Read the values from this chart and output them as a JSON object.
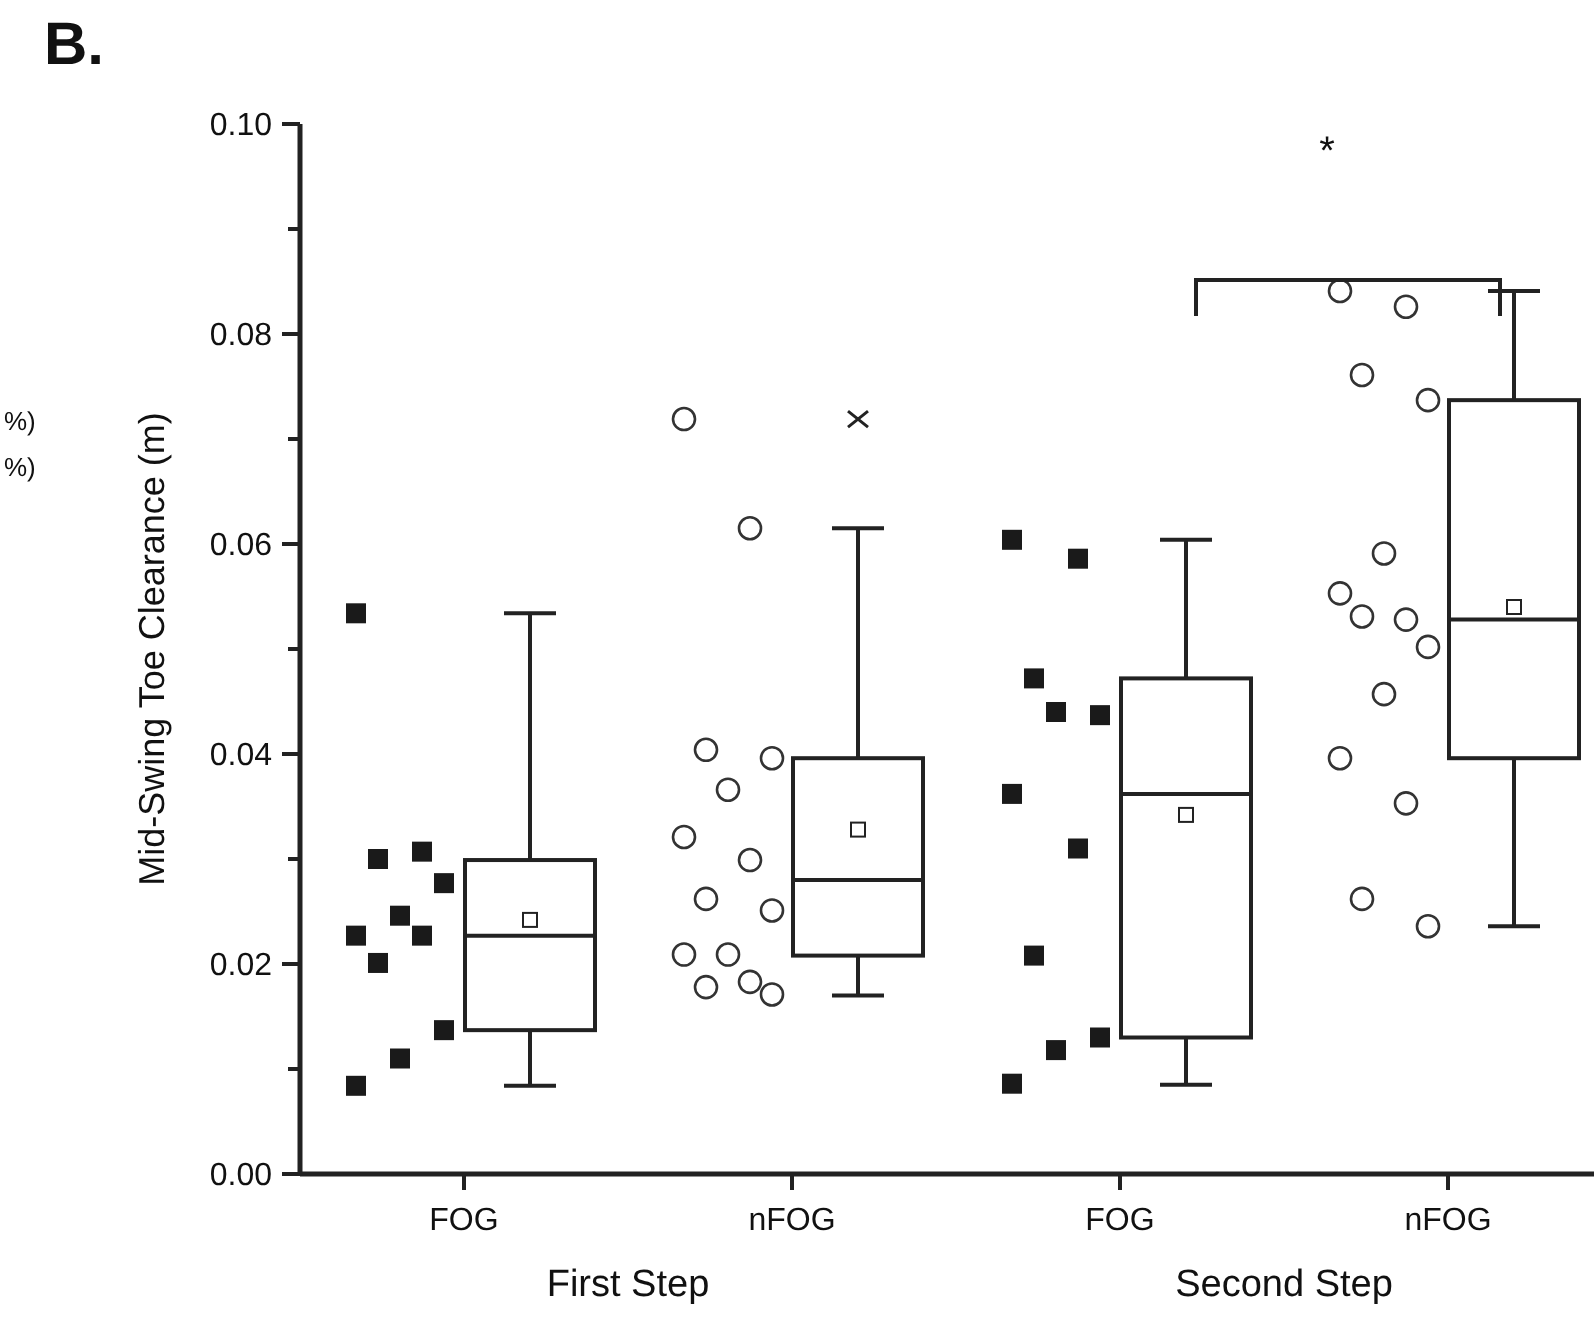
{
  "chart_data": [
    {
      "type": "box",
      "title": "B.",
      "ylabel": "Mid-Swing Toe Clearance (m)",
      "xlabel": "First Step",
      "categories": [
        "FOG",
        "nFOG"
      ],
      "ylim": [
        0,
        0.1
      ],
      "yticks": [
        {
          "value": 0,
          "label": "0.00"
        },
        {
          "value": 0.01,
          "label": null
        },
        {
          "value": 0.02,
          "label": "0.02"
        },
        {
          "value": 0.03,
          "label": null
        },
        {
          "value": 0.04,
          "label": "0.04"
        },
        {
          "value": 0.05,
          "label": null
        },
        {
          "value": 0.06,
          "label": "0.06"
        },
        {
          "value": 0.07,
          "label": null
        },
        {
          "value": 0.08,
          "label": "0.08"
        },
        {
          "value": 0.09,
          "label": null
        },
        {
          "value": 0.1,
          "label": "0.10"
        }
      ],
      "boxes": [
        {
          "low": 0.0084,
          "q1": 0.0137,
          "median": 0.0227,
          "q3": 0.0299,
          "high": 0.0534,
          "mean": 0.0242
        },
        {
          "low": 0.017,
          "q1": 0.0208,
          "median": 0.028,
          "q3": 0.0396,
          "high": 0.0615,
          "mean": 0.0328,
          "outliers": [
            0.0719
          ]
        }
      ],
      "series": [
        {
          "type": "scatter",
          "marker": "square",
          "color": "#1a1a1a",
          "x": [
            "FOG",
            "FOG",
            "FOG",
            "FOG",
            "FOG",
            "FOG",
            "FOG",
            "FOG",
            "FOG",
            "FOG",
            "FOG"
          ],
          "values": [
            0.0534,
            0.0307,
            0.03,
            0.0277,
            0.0246,
            0.0227,
            0.0227,
            0.0201,
            0.0137,
            0.011,
            0.0084
          ]
        },
        {
          "type": "scatter",
          "marker": "circle",
          "color": "#333333",
          "x": [
            "nFOG",
            "nFOG",
            "nFOG",
            "nFOG",
            "nFOG",
            "nFOG",
            "nFOG",
            "nFOG",
            "nFOG",
            "nFOG",
            "nFOG",
            "nFOG",
            "nFOG",
            "nFOG"
          ],
          "values": [
            0.0719,
            0.0615,
            0.0404,
            0.0396,
            0.0366,
            0.0321,
            0.0299,
            0.0262,
            0.0251,
            0.0209,
            0.0209,
            0.0183,
            0.0178,
            0.0171
          ]
        }
      ],
      "annotations": [
        "%)",
        "%)"
      ]
    },
    {
      "type": "box",
      "xlabel": "Second Step",
      "tick_labels": "x",
      "categories": [
        "FOG",
        "nFOG"
      ],
      "ylim": [
        0,
        0.1
      ],
      "boxes": [
        {
          "low": 0.0085,
          "q1": 0.013,
          "median": 0.0362,
          "q3": 0.0472,
          "high": 0.0604,
          "mean": 0.0342
        },
        {
          "low": 0.0236,
          "q1": 0.0396,
          "median": 0.0528,
          "q3": 0.0737,
          "high": 0.0841,
          "mean": 0.054
        }
      ],
      "series": [
        {
          "type": "scatter",
          "marker": "square",
          "color": "#1a1a1a",
          "x": [
            "FOG",
            "FOG",
            "FOG",
            "FOG",
            "FOG",
            "FOG",
            "FOG",
            "FOG",
            "FOG",
            "FOG",
            "FOG"
          ],
          "values": [
            0.0604,
            0.0586,
            0.0472,
            0.0437,
            0.044,
            0.0362,
            0.031,
            0.0208,
            0.013,
            0.0118,
            0.0086
          ]
        },
        {
          "type": "scatter",
          "marker": "circle",
          "color": "#333333",
          "x": [
            "nFOG",
            "nFOG",
            "nFOG",
            "nFOG",
            "nFOG",
            "nFOG",
            "nFOG",
            "nFOG",
            "nFOG",
            "nFOG",
            "nFOG",
            "nFOG",
            "nFOG",
            "nFOG"
          ],
          "values": [
            0.0841,
            0.0826,
            0.0761,
            0.0737,
            0.0591,
            0.0553,
            0.0528,
            0.0531,
            0.0502,
            0.0457,
            0.0396,
            0.0353,
            0.0262,
            0.0236
          ]
        }
      ],
      "annotations": [
        "*"
      ]
    }
  ]
}
